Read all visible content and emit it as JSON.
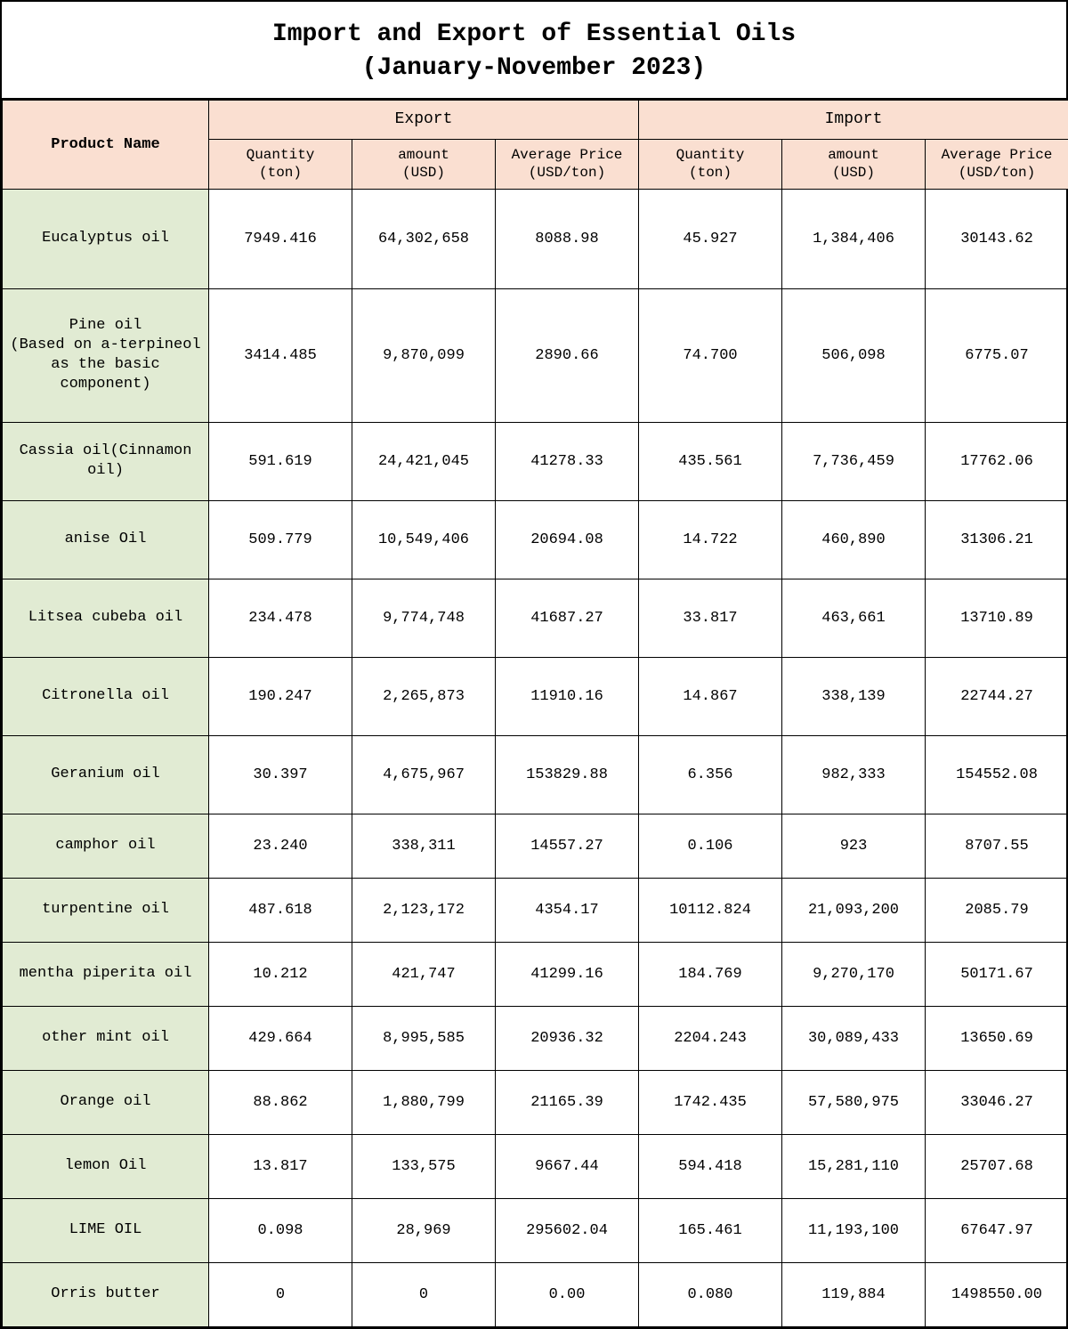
{
  "title": {
    "line1": "Import and Export of Essential Oils",
    "line2": "(January-November 2023)"
  },
  "colors": {
    "header_pink": "#fadfd1",
    "row_green": "#e1ebd3",
    "border": "#000000",
    "background": "#ffffff"
  },
  "columns": {
    "product": "Product Name",
    "export_group": "Export",
    "import_group": "Import",
    "qty_label_l1": "Quantity",
    "qty_label_l2": "(ton)",
    "amt_label_l1": "amount",
    "amt_label_l2": "(USD)",
    "avg_label_l1": "Average Price",
    "avg_label_l2": "(USD/ton)"
  },
  "rows": [
    {
      "name": "Eucalyptus oil",
      "h": "r-tall",
      "eq": "7949.416",
      "ea": "64,302,658",
      "ep": "8088.98",
      "iq": "45.927",
      "ia": "1,384,406",
      "ip": "30143.62"
    },
    {
      "name": "Pine oil\n(Based on a-terpineol as the basic component)",
      "h": "r-xtall",
      "eq": "3414.485",
      "ea": "9,870,099",
      "ep": "2890.66",
      "iq": "74.700",
      "ia": "506,098",
      "ip": "6775.07"
    },
    {
      "name": "Cassia oil(Cinnamon oil)",
      "h": "r-mid",
      "eq": "591.619",
      "ea": "24,421,045",
      "ep": "41278.33",
      "iq": "435.561",
      "ia": "7,736,459",
      "ip": "17762.06"
    },
    {
      "name": "anise Oil",
      "h": "r-mid",
      "eq": "509.779",
      "ea": "10,549,406",
      "ep": "20694.08",
      "iq": "14.722",
      "ia": "460,890",
      "ip": "31306.21"
    },
    {
      "name": "Litsea cubeba oil",
      "h": "r-mid",
      "eq": "234.478",
      "ea": "9,774,748",
      "ep": "41687.27",
      "iq": "33.817",
      "ia": "463,661",
      "ip": "13710.89"
    },
    {
      "name": "Citronella oil",
      "h": "r-mid",
      "eq": "190.247",
      "ea": "2,265,873",
      "ep": "11910.16",
      "iq": "14.867",
      "ia": "338,139",
      "ip": "22744.27"
    },
    {
      "name": "Geranium oil",
      "h": "r-mid",
      "eq": "30.397",
      "ea": "4,675,967",
      "ep": "153829.88",
      "iq": "6.356",
      "ia": "982,333",
      "ip": "154552.08"
    },
    {
      "name": "camphor oil",
      "h": "r-low",
      "eq": "23.240",
      "ea": "338,311",
      "ep": "14557.27",
      "iq": "0.106",
      "ia": "923",
      "ip": "8707.55"
    },
    {
      "name": "turpentine oil",
      "h": "r-low",
      "eq": "487.618",
      "ea": "2,123,172",
      "ep": "4354.17",
      "iq": "10112.824",
      "ia": "21,093,200",
      "ip": "2085.79"
    },
    {
      "name": "mentha piperita oil",
      "h": "r-low",
      "eq": "10.212",
      "ea": "421,747",
      "ep": "41299.16",
      "iq": "184.769",
      "ia": "9,270,170",
      "ip": "50171.67"
    },
    {
      "name": "other mint oil",
      "h": "r-low",
      "eq": "429.664",
      "ea": "8,995,585",
      "ep": "20936.32",
      "iq": "2204.243",
      "ia": "30,089,433",
      "ip": "13650.69"
    },
    {
      "name": "Orange oil",
      "h": "r-low",
      "eq": "88.862",
      "ea": "1,880,799",
      "ep": "21165.39",
      "iq": "1742.435",
      "ia": "57,580,975",
      "ip": "33046.27"
    },
    {
      "name": "lemon Oil",
      "h": "r-low",
      "eq": "13.817",
      "ea": "133,575",
      "ep": "9667.44",
      "iq": "594.418",
      "ia": "15,281,110",
      "ip": "25707.68"
    },
    {
      "name": "LIME OIL",
      "h": "r-low",
      "eq": "0.098",
      "ea": "28,969",
      "ep": "295602.04",
      "iq": "165.461",
      "ia": "11,193,100",
      "ip": "67647.97"
    },
    {
      "name": "Orris butter",
      "h": "r-low",
      "eq": "0",
      "ea": "0",
      "ep": "0.00",
      "iq": "0.080",
      "ia": "119,884",
      "ip": "1498550.00"
    }
  ]
}
